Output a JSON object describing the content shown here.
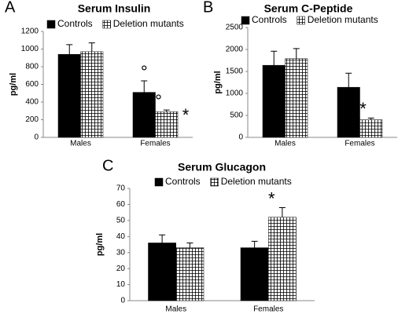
{
  "chart_data": [
    {
      "type": "bar",
      "panel": "A",
      "title": "Serum Insulin",
      "y_label": "pg/ml",
      "categories": [
        "Males",
        "Females"
      ],
      "series": [
        {
          "name": "Controls",
          "color": "#000000",
          "values": [
            940,
            510
          ],
          "errors": [
            110,
            130
          ],
          "annotations": [
            null,
            [
              "°"
            ]
          ]
        },
        {
          "name": "Deletion mutants",
          "color": "hatch",
          "values": [
            970,
            290
          ],
          "errors": [
            100,
            20
          ],
          "annotations": [
            null,
            [
              "°",
              "*"
            ]
          ]
        }
      ],
      "ylim": [
        0,
        1200
      ],
      "yticks": [
        0,
        200,
        400,
        600,
        800,
        1000,
        1200
      ],
      "grid": false
    },
    {
      "type": "bar",
      "panel": "B",
      "title": "Serum C-Peptide",
      "y_label": "pg/ml",
      "categories": [
        "Males",
        "Females"
      ],
      "series": [
        {
          "name": "Controls",
          "color": "#000000",
          "values": [
            1640,
            1140
          ],
          "errors": [
            320,
            320
          ],
          "annotations": [
            null,
            null
          ]
        },
        {
          "name": "Deletion mutants",
          "color": "hatch",
          "values": [
            1790,
            400
          ],
          "errors": [
            230,
            40
          ],
          "annotations": [
            null,
            [
              "*"
            ]
          ]
        }
      ],
      "ylim": [
        0,
        2500
      ],
      "yticks": [
        0,
        500,
        1000,
        1500,
        2000,
        2500
      ],
      "grid": false
    },
    {
      "type": "bar",
      "panel": "C",
      "title": "Serum Glucagon",
      "y_label": "pg/ml",
      "categories": [
        "Males",
        "Females"
      ],
      "series": [
        {
          "name": "Controls",
          "color": "#000000",
          "values": [
            36,
            33
          ],
          "errors": [
            5,
            4
          ],
          "annotations": [
            null,
            null
          ]
        },
        {
          "name": "Deletion mutants",
          "color": "hatch",
          "values": [
            33,
            52
          ],
          "errors": [
            3,
            6
          ],
          "annotations": [
            null,
            [
              "*"
            ]
          ]
        }
      ],
      "ylim": [
        0,
        70
      ],
      "yticks": [
        0,
        10,
        20,
        30,
        40,
        50,
        60,
        70
      ],
      "grid": false
    }
  ]
}
